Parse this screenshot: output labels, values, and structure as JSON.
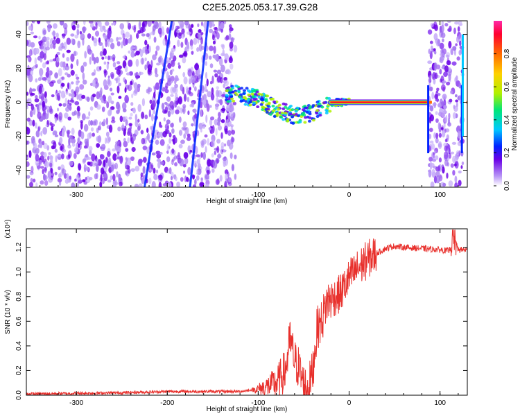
{
  "title": "C2E5.2025.053.17.39.G28",
  "colors": {
    "snr_line": "#e8302c",
    "frame": "#000000"
  },
  "chart_data": [
    {
      "type": "heatmap",
      "xlabel": "Height of straight line (km)",
      "ylabel": "Frequency (Hz)",
      "xlim": [
        -355,
        130
      ],
      "ylim": [
        -50,
        48
      ],
      "xticks": [
        -300,
        -200,
        -100,
        0,
        100
      ],
      "yticks": [
        -40,
        -20,
        0,
        20,
        40
      ],
      "colorbar": {
        "label": "Normalized spectral amplitude",
        "range": [
          0,
          1
        ],
        "ticks": [
          "0.0",
          "0.2",
          "0.4",
          "0.6",
          "0.8"
        ],
        "colormap": [
          "#ffffff",
          "#b794f6",
          "#6a00e6",
          "#0022ff",
          "#00c8ff",
          "#00e676",
          "#b0f000",
          "#ffd000",
          "#ff6a00",
          "#ff0030",
          "#ff2aa8"
        ]
      },
      "features": {
        "noise_region_km": [
          [
            -355,
            -125
          ],
          [
            88,
            125
          ]
        ],
        "carrier_track": [
          {
            "x": -125,
            "y": 5
          },
          {
            "x": -100,
            "y": 2
          },
          {
            "x": -80,
            "y": -4
          },
          {
            "x": -60,
            "y": -8
          },
          {
            "x": -40,
            "y": -6
          },
          {
            "x": -20,
            "y": 0
          },
          {
            "x": 0,
            "y": 0
          },
          {
            "x": 85,
            "y": 0
          }
        ],
        "diagonal_streaks": [
          {
            "x1": -225,
            "y1": -50,
            "x2": -195,
            "y2": 48
          },
          {
            "x1": -175,
            "y1": -50,
            "x2": -155,
            "y2": 48
          }
        ]
      }
    },
    {
      "type": "line",
      "xlabel": "Height of straight line (km)",
      "ylabel": "SNR (10 * v/v)",
      "yscale_note": "(x10⁴)",
      "xlim": [
        -355,
        130
      ],
      "ylim": [
        0,
        1.35
      ],
      "xticks": [
        -300,
        -200,
        -100,
        0,
        100
      ],
      "yticks": [
        0.0,
        0.2,
        0.4,
        0.6,
        0.8,
        1.0,
        1.2
      ],
      "series": [
        {
          "x": [
            -355,
            -300,
            -250,
            -200,
            -150,
            -120,
            -100,
            -90,
            -80,
            -70,
            -65,
            -60,
            -55,
            -50,
            -45,
            -40,
            -35,
            -30,
            -25,
            -20,
            -15,
            -10,
            -5,
            0,
            10,
            20,
            30,
            40,
            50,
            60,
            80,
            100,
            110,
            115,
            120,
            130
          ],
          "y": [
            0.01,
            0.015,
            0.02,
            0.03,
            0.03,
            0.03,
            0.05,
            0.07,
            0.1,
            0.2,
            0.45,
            0.28,
            0.22,
            0.08,
            0.05,
            0.2,
            0.55,
            0.6,
            0.75,
            0.78,
            0.8,
            0.82,
            0.88,
            0.95,
            1.03,
            1.1,
            1.15,
            1.19,
            1.21,
            1.2,
            1.19,
            1.18,
            1.17,
            1.28,
            1.18,
            1.18
          ]
        }
      ]
    }
  ]
}
